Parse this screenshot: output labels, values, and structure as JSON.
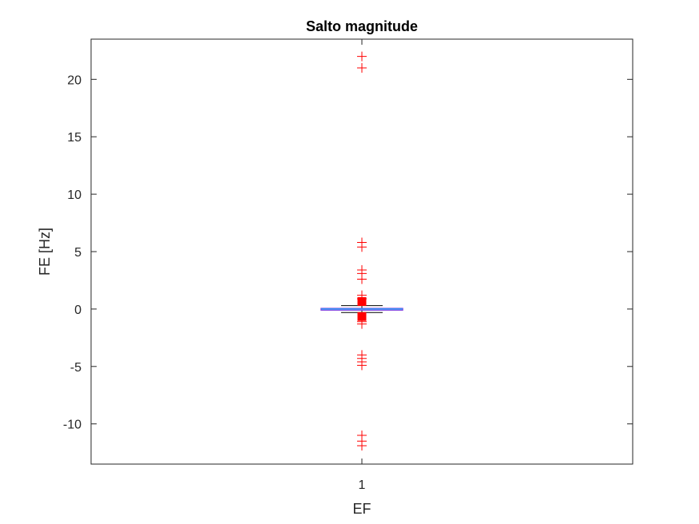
{
  "chart_data": {
    "type": "box",
    "title": "Salto magnitude",
    "xlabel": "EF",
    "ylabel": "FE [Hz]",
    "categories": [
      "1"
    ],
    "ylim": [
      -13.5,
      23.5
    ],
    "yticks": [
      -10,
      -5,
      0,
      5,
      10,
      15,
      20
    ],
    "ytick_labels": [
      "-10",
      "-5",
      "0",
      "5",
      "10",
      "15",
      "20"
    ],
    "grid": false,
    "box": {
      "median": 0,
      "q1": -0.05,
      "q3": 0.05,
      "whisker_low": -0.3,
      "whisker_high": 0.3
    },
    "markers": [
      0.65,
      -0.65
    ],
    "outliers": [
      22,
      21,
      21,
      5.8,
      5.4,
      3.4,
      3.1,
      2.6,
      1.2,
      0.9,
      -1.1,
      -1.3,
      -4.0,
      -4.3,
      -4.6,
      -4.9,
      -11.0,
      -11.5,
      -11.9
    ],
    "colors": {
      "box": "#8040e0",
      "median": "#00c8ff",
      "whisker": "#000000",
      "outlier": "#ff0000",
      "marker": "#ff0000",
      "axes": "#262626"
    }
  }
}
